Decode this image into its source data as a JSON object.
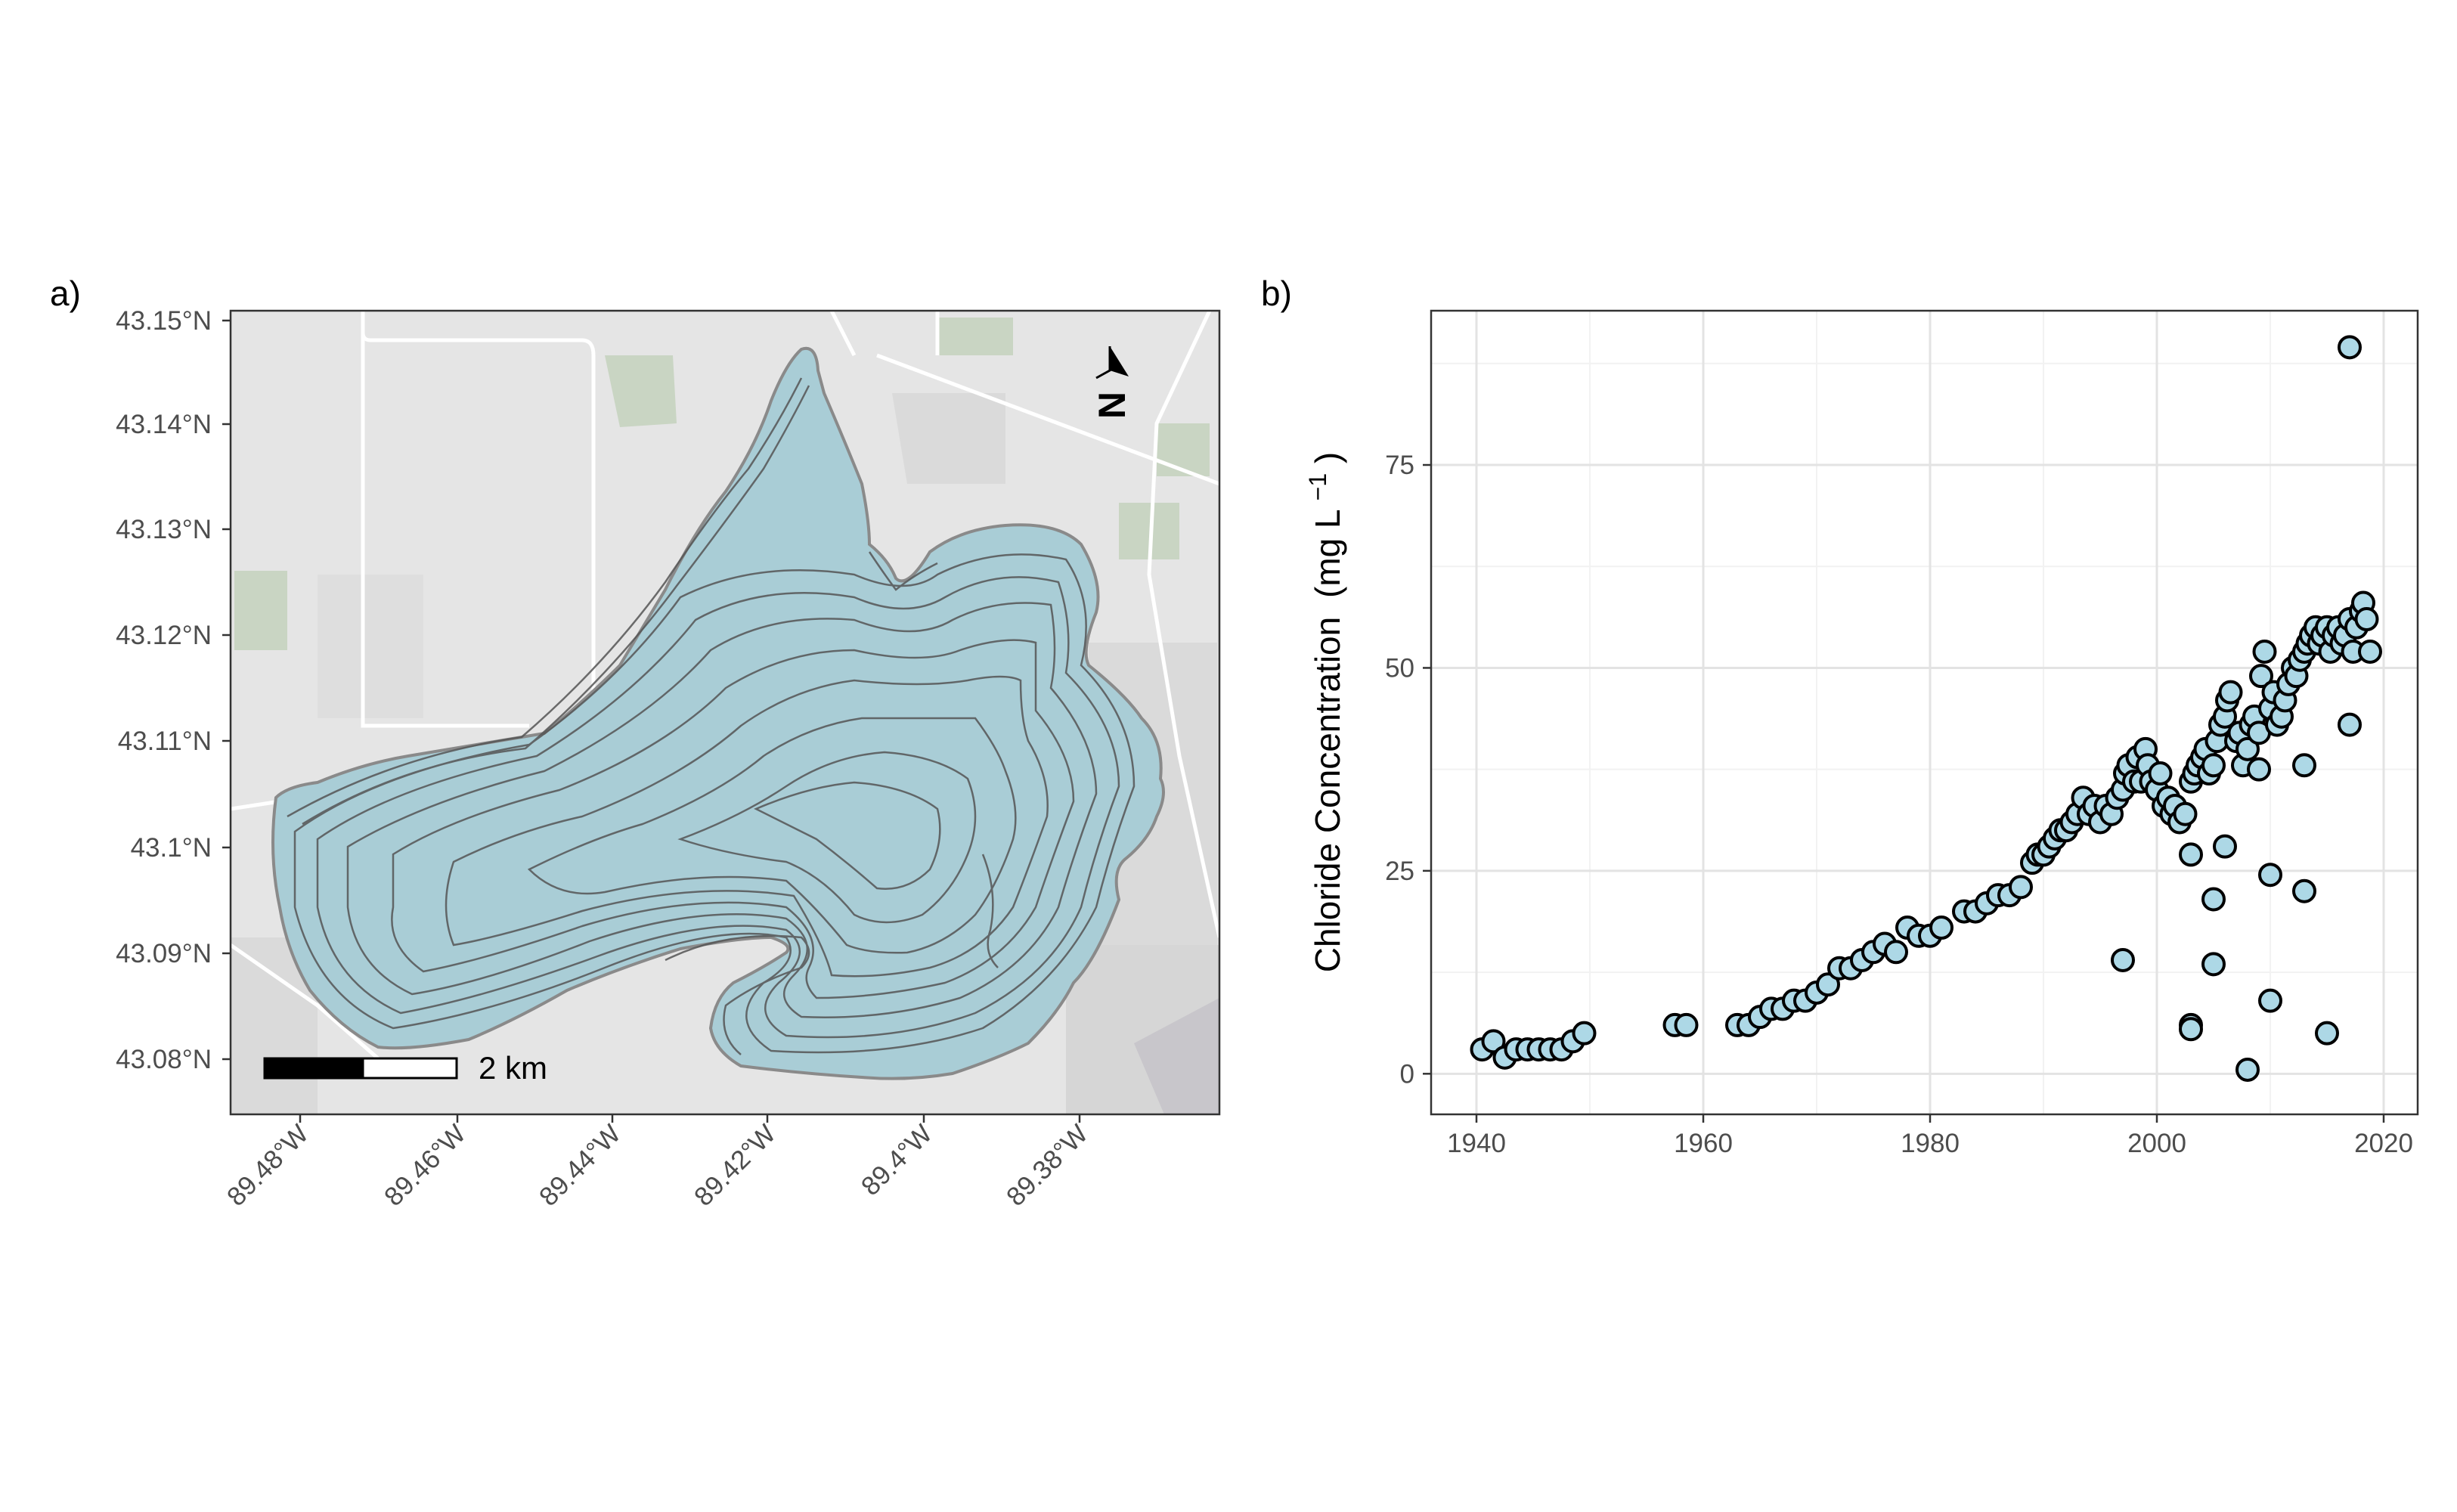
{
  "panels": {
    "a_label": "a)",
    "b_label": "b)"
  },
  "map": {
    "lat_labels": [
      "43.15°N",
      "43.14°N",
      "43.13°N",
      "43.12°N",
      "43.11°N",
      "43.1°N",
      "43.09°N",
      "43.08°N"
    ],
    "lon_labels": [
      "89.48°W",
      "89.46°W",
      "89.44°W",
      "89.42°W",
      "89.4°W",
      "89.38°W"
    ],
    "scale_bar_label": "2 km",
    "north_arrow_label": "N",
    "colors": {
      "lake": "#a9cdd6",
      "land": "#e5e5e5",
      "contour": "#555555",
      "park": "#c9d5c3",
      "road": "#ffffff"
    }
  },
  "chart_data": {
    "type": "scatter",
    "ylabel_main": "Chloride Concentration",
    "ylabel_unit_open": "(mg L",
    "ylabel_unit_sup": "−1",
    "ylabel_unit_close": ")",
    "xlim": [
      1936,
      2023
    ],
    "ylim": [
      -5,
      94
    ],
    "x_ticks": [
      1940,
      1960,
      1980,
      2000,
      2020
    ],
    "y_ticks": [
      0,
      25,
      50,
      75
    ],
    "x_tick_labels": [
      "1940",
      "1960",
      "1980",
      "2000",
      "2020"
    ],
    "y_tick_labels": [
      "0",
      "25",
      "50",
      "75"
    ],
    "grid": true,
    "marker_fill": "#add8e6",
    "marker_edge": "#000000",
    "points": [
      [
        1940.5,
        3
      ],
      [
        1941.5,
        4
      ],
      [
        1942.5,
        2
      ],
      [
        1943.5,
        3
      ],
      [
        1944.5,
        3
      ],
      [
        1945.5,
        3
      ],
      [
        1946.5,
        3
      ],
      [
        1947.5,
        3
      ],
      [
        1948.5,
        4
      ],
      [
        1949.5,
        5
      ],
      [
        1957.5,
        6
      ],
      [
        1958.5,
        6
      ],
      [
        1963,
        6
      ],
      [
        1964,
        6
      ],
      [
        1965,
        7
      ],
      [
        1966,
        8
      ],
      [
        1967,
        8
      ],
      [
        1968,
        9
      ],
      [
        1969,
        9
      ],
      [
        1970,
        10
      ],
      [
        1971,
        11
      ],
      [
        1972,
        13
      ],
      [
        1973,
        13
      ],
      [
        1974,
        14
      ],
      [
        1975,
        15
      ],
      [
        1976,
        16
      ],
      [
        1977,
        15
      ],
      [
        1978,
        18
      ],
      [
        1979,
        17
      ],
      [
        1980,
        17
      ],
      [
        1981,
        18
      ],
      [
        1983,
        20
      ],
      [
        1984,
        20
      ],
      [
        1985,
        21
      ],
      [
        1986,
        22
      ],
      [
        1987,
        22
      ],
      [
        1988,
        23
      ],
      [
        1989,
        26
      ],
      [
        1989.5,
        27
      ],
      [
        1990,
        27
      ],
      [
        1990.5,
        28
      ],
      [
        1991,
        29
      ],
      [
        1991.5,
        30
      ],
      [
        1992,
        30
      ],
      [
        1992.5,
        31
      ],
      [
        1993,
        32
      ],
      [
        1993.5,
        34
      ],
      [
        1994,
        32
      ],
      [
        1994.5,
        33
      ],
      [
        1995,
        31
      ],
      [
        1995.5,
        33
      ],
      [
        1996,
        32
      ],
      [
        1996.5,
        34
      ],
      [
        1997,
        35
      ],
      [
        1997.2,
        37
      ],
      [
        1997.5,
        38
      ],
      [
        1998,
        36
      ],
      [
        1998.3,
        39
      ],
      [
        1998.6,
        36
      ],
      [
        1999,
        40
      ],
      [
        1999.2,
        38
      ],
      [
        1999.5,
        36
      ],
      [
        2000,
        35
      ],
      [
        2000.3,
        37
      ],
      [
        2000.6,
        33
      ],
      [
        2001,
        34
      ],
      [
        2001.3,
        32
      ],
      [
        2001.6,
        33
      ],
      [
        2002,
        31
      ],
      [
        2002.5,
        32
      ],
      [
        2003,
        36
      ],
      [
        2003.3,
        37
      ],
      [
        2003.6,
        38
      ],
      [
        2004,
        39
      ],
      [
        2004.3,
        40
      ],
      [
        2004.6,
        37
      ],
      [
        2005,
        38
      ],
      [
        2005.3,
        41
      ],
      [
        2005.6,
        43
      ],
      [
        2006,
        44
      ],
      [
        2006.2,
        46
      ],
      [
        2006.5,
        47
      ],
      [
        2007,
        41
      ],
      [
        2007.3,
        42
      ],
      [
        2007.6,
        38
      ],
      [
        2008,
        40
      ],
      [
        2008.3,
        43
      ],
      [
        2008.6,
        44
      ],
      [
        2009,
        42
      ],
      [
        2009.2,
        49
      ],
      [
        2009.5,
        52
      ],
      [
        2010,
        45
      ],
      [
        2010.3,
        47
      ],
      [
        2010.6,
        43
      ],
      [
        2011,
        44
      ],
      [
        2011.3,
        46
      ],
      [
        2011.6,
        48
      ],
      [
        2012,
        50
      ],
      [
        2012.3,
        49
      ],
      [
        2012.6,
        51
      ],
      [
        2013,
        52
      ],
      [
        2013.3,
        53
      ],
      [
        2013.6,
        54
      ],
      [
        2014,
        55
      ],
      [
        2014.3,
        53
      ],
      [
        2014.6,
        54
      ],
      [
        2015,
        55
      ],
      [
        2015.3,
        52
      ],
      [
        2015.6,
        54
      ],
      [
        2016,
        55
      ],
      [
        2016.3,
        53
      ],
      [
        2016.6,
        54
      ],
      [
        2017,
        56
      ],
      [
        2017.3,
        52
      ],
      [
        2017.6,
        55
      ],
      [
        2018,
        57
      ],
      [
        2018.2,
        58
      ],
      [
        2018.5,
        56
      ],
      [
        2018.8,
        52
      ],
      [
        1997,
        14
      ],
      [
        2003,
        27
      ],
      [
        2003,
        6
      ],
      [
        2003,
        5.5
      ],
      [
        2005,
        21.5
      ],
      [
        2005,
        13.5
      ],
      [
        2006,
        28
      ],
      [
        2008,
        0.5
      ],
      [
        2009,
        37.5
      ],
      [
        2010,
        24.5
      ],
      [
        2010,
        9
      ],
      [
        2013,
        38
      ],
      [
        2013,
        22.5
      ],
      [
        2015,
        5
      ],
      [
        2017,
        43
      ],
      [
        2017,
        89.5
      ]
    ]
  }
}
